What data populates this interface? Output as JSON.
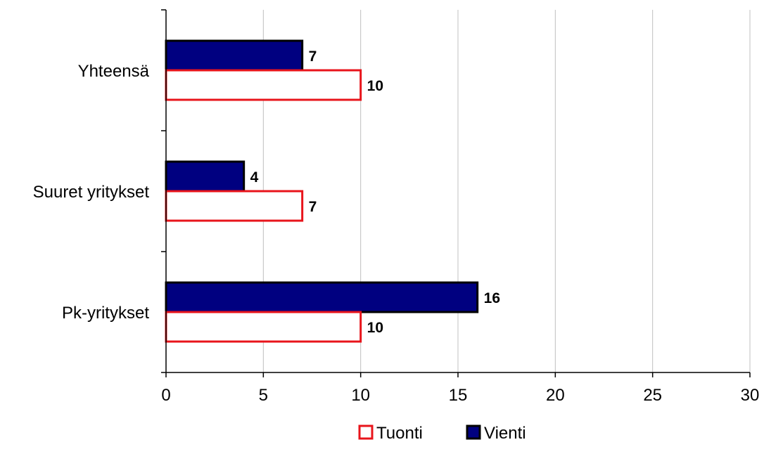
{
  "chart_data": {
    "type": "bar",
    "orientation": "horizontal",
    "title": "",
    "xlabel": "",
    "ylabel": "",
    "categories": [
      "Pk-yritykset",
      "Suuret yritykset",
      "Yhteensä"
    ],
    "series": [
      {
        "name": "Vienti",
        "values": [
          16,
          4,
          7
        ],
        "fill": "#000080",
        "stroke": "#000000"
      },
      {
        "name": "Tuonti",
        "values": [
          10,
          7,
          10
        ],
        "fill": "#ffffff",
        "stroke": "#e8141b"
      }
    ],
    "xlim": [
      0,
      30
    ],
    "xticks": [
      0,
      5,
      10,
      15,
      20,
      25,
      30
    ],
    "grid": "vertical",
    "legend": {
      "position": "bottom",
      "order": [
        "Tuonti",
        "Vienti"
      ]
    },
    "data_labels": true
  }
}
